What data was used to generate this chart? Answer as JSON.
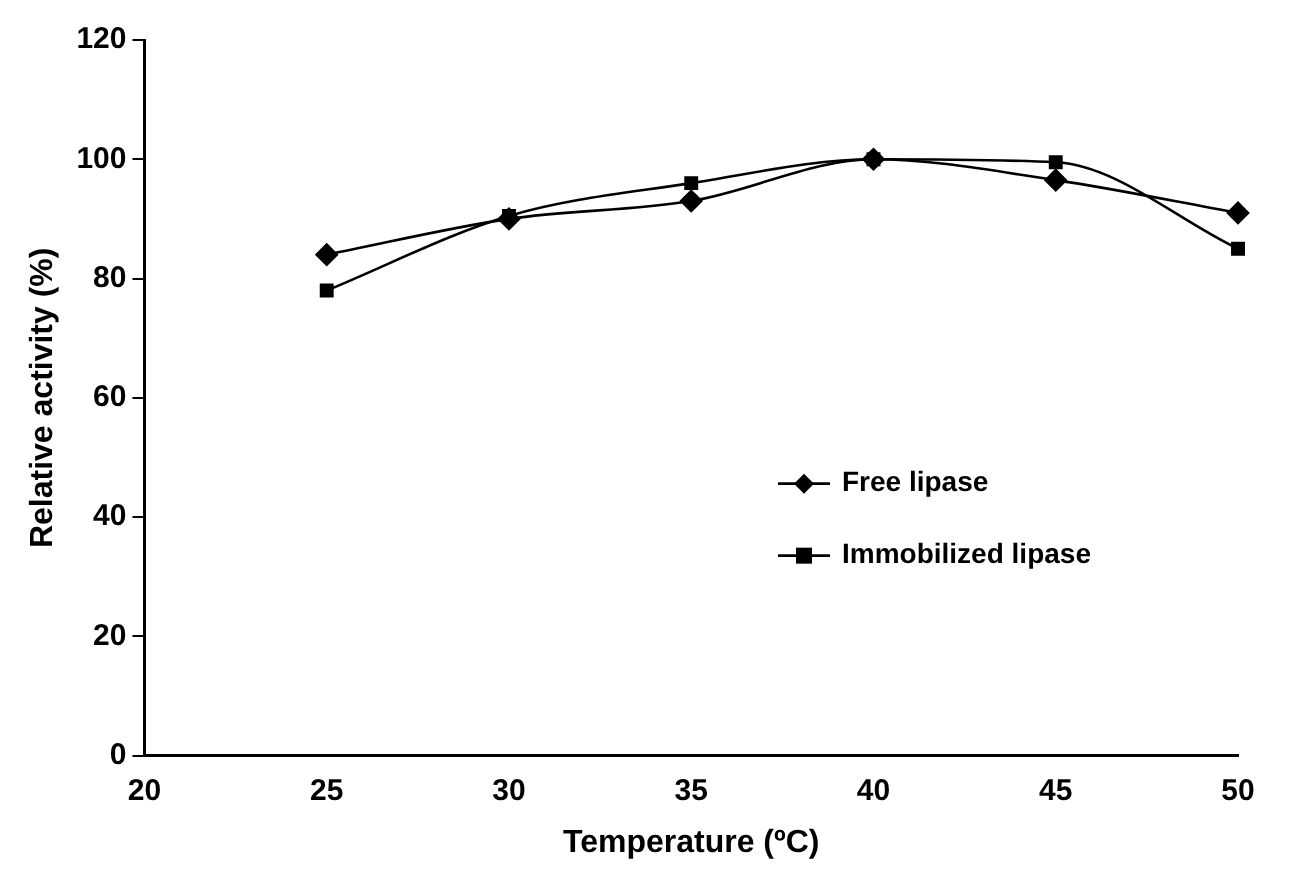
{
  "chart_data": {
    "type": "line",
    "xlabel": "Temperature (ºC)",
    "ylabel": "Relative activity (%)",
    "x": [
      25,
      30,
      35,
      40,
      45,
      50
    ],
    "series": [
      {
        "name": "Free lipase",
        "color": "#000000",
        "marker": "diamond",
        "values": [
          84,
          90,
          93,
          100,
          96.5,
          91
        ]
      },
      {
        "name": "Immobilized lipase",
        "color": "#000000",
        "marker": "square",
        "values": [
          78,
          90.5,
          96,
          100,
          99.5,
          85
        ]
      }
    ],
    "xlim": [
      20,
      50
    ],
    "xticks": [
      20,
      25,
      30,
      35,
      40,
      45,
      50
    ],
    "ylim": [
      0,
      120
    ],
    "yticks": [
      0,
      20,
      40,
      60,
      80,
      100,
      120
    ],
    "grid": false,
    "legend": "right"
  }
}
